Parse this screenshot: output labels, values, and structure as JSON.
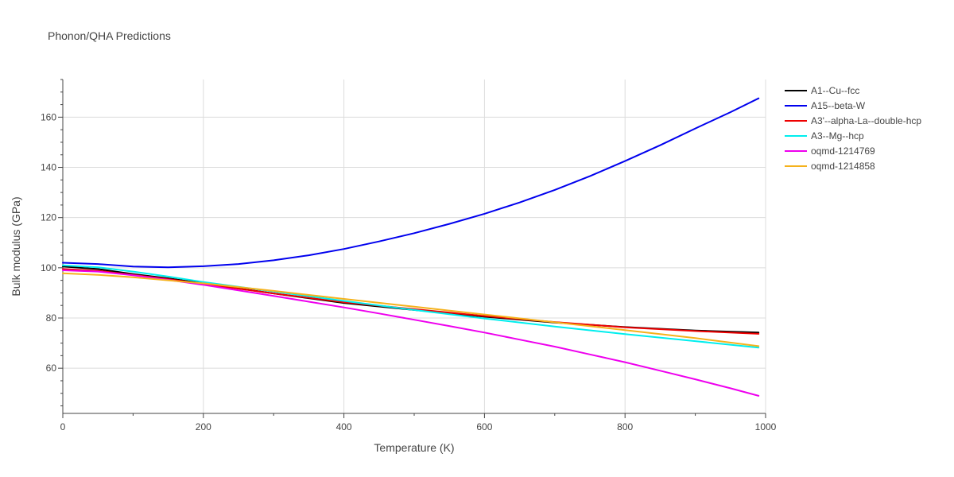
{
  "chart_data": {
    "type": "line",
    "title": "Phonon/QHA Predictions",
    "xlabel": "Temperature (K)",
    "ylabel": "Bulk modulus (GPa)",
    "xlim": [
      0,
      1000
    ],
    "ylim": [
      42,
      175
    ],
    "xticks": [
      0,
      200,
      400,
      600,
      800,
      1000
    ],
    "yticks": [
      60,
      80,
      100,
      120,
      140,
      160
    ],
    "grid": true,
    "legend_position": "right",
    "series": [
      {
        "name": "A1--Cu--fcc",
        "color": "#000000",
        "x": [
          0,
          50,
          100,
          150,
          200,
          300,
          400,
          500,
          600,
          700,
          800,
          900,
          990
        ],
        "y": [
          100.5,
          99.5,
          97.5,
          95.8,
          93.8,
          89.8,
          86.0,
          83.2,
          80.5,
          78.2,
          76.4,
          75.0,
          74.2
        ]
      },
      {
        "name": "A15--beta-W",
        "color": "#0000ee",
        "x": [
          0,
          50,
          100,
          150,
          200,
          250,
          300,
          350,
          400,
          450,
          500,
          550,
          600,
          650,
          700,
          750,
          800,
          850,
          900,
          950,
          990
        ],
        "y": [
          102.0,
          101.5,
          100.5,
          100.2,
          100.6,
          101.5,
          103.0,
          105.0,
          107.5,
          110.5,
          113.8,
          117.5,
          121.5,
          126.0,
          131.0,
          136.5,
          142.5,
          148.8,
          155.5,
          162.0,
          167.5
        ]
      },
      {
        "name": "A3'--alpha-La--double-hcp",
        "color": "#ee0000",
        "x": [
          0,
          50,
          100,
          150,
          200,
          300,
          400,
          500,
          600,
          700,
          800,
          900,
          990
        ],
        "y": [
          99.5,
          98.8,
          97.2,
          95.5,
          93.6,
          89.8,
          86.3,
          83.5,
          80.8,
          78.4,
          76.3,
          74.8,
          73.7
        ]
      },
      {
        "name": "A3--Mg--hcp",
        "color": "#00eeee",
        "x": [
          0,
          50,
          100,
          150,
          200,
          300,
          400,
          500,
          600,
          700,
          800,
          900,
          990
        ],
        "y": [
          101.0,
          100.2,
          98.5,
          96.5,
          94.3,
          90.5,
          86.8,
          83.2,
          79.8,
          76.6,
          73.6,
          70.8,
          68.2
        ]
      },
      {
        "name": "oqmd-1214769",
        "color": "#ee00ee",
        "x": [
          0,
          50,
          100,
          150,
          200,
          250,
          300,
          350,
          400,
          450,
          500,
          550,
          600,
          650,
          700,
          750,
          800,
          850,
          900,
          950,
          990
        ],
        "y": [
          99.0,
          98.5,
          97.0,
          95.2,
          93.2,
          91.0,
          88.8,
          86.5,
          84.2,
          81.8,
          79.3,
          76.8,
          74.2,
          71.4,
          68.6,
          65.5,
          62.4,
          59.0,
          55.6,
          52.0,
          49.0
        ]
      },
      {
        "name": "oqmd-1214858",
        "color": "#f5b21c",
        "x": [
          0,
          50,
          100,
          150,
          200,
          300,
          400,
          500,
          600,
          700,
          800,
          900,
          990
        ],
        "y": [
          97.8,
          97.2,
          96.2,
          95.0,
          93.8,
          90.8,
          87.6,
          84.5,
          81.4,
          78.3,
          75.2,
          72.0,
          68.8
        ]
      }
    ]
  }
}
